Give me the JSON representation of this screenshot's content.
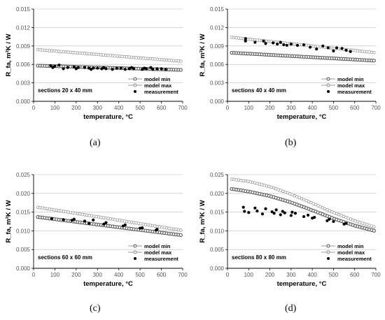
{
  "captions": [
    "(a)",
    "(b)",
    "(c)",
    "(d)"
  ],
  "chart_data": [
    {
      "type": "scatter",
      "title": "",
      "annotation": "sections 20 x 40 mm",
      "xlabel": "temperature, °C",
      "ylabel": "R_fa, m²K / W",
      "xlim": [
        0,
        700
      ],
      "ylim": [
        0,
        0.015
      ],
      "xticks": [
        0,
        100,
        200,
        300,
        400,
        500,
        600,
        700
      ],
      "yticks": [
        0.0,
        0.003,
        0.006,
        0.009,
        0.012,
        0.015
      ],
      "ytick_labels": [
        "0.000",
        "0.003",
        "0.006",
        "0.009",
        "0.012",
        "0.015"
      ],
      "legend_position": "bottom-right",
      "series": [
        {
          "name": "model min",
          "style": "thick-open-circle",
          "x": [
            20,
            700
          ],
          "y": [
            0.0058,
            0.0051
          ]
        },
        {
          "name": "model max",
          "style": "open-circle",
          "x": [
            20,
            700
          ],
          "y": [
            0.0084,
            0.0065
          ]
        },
        {
          "name": "measurement",
          "style": "filled-dot",
          "x": [
            80,
            90,
            100,
            120,
            140,
            160,
            190,
            200,
            210,
            240,
            260,
            270,
            280,
            300,
            320,
            330,
            340,
            370,
            390,
            410,
            430,
            450,
            460,
            470,
            510,
            520,
            530,
            550,
            560,
            580,
            600,
            620
          ],
          "y": [
            0.0058,
            0.0055,
            0.0057,
            0.0059,
            0.0053,
            0.0055,
            0.0056,
            0.0053,
            0.0055,
            0.0055,
            0.0054,
            0.0052,
            0.0054,
            0.0054,
            0.0053,
            0.0055,
            0.0053,
            0.0052,
            0.0054,
            0.0054,
            0.0052,
            0.0053,
            0.0055,
            0.0053,
            0.0052,
            0.0054,
            0.0053,
            0.0055,
            0.0052,
            0.0053,
            0.0053,
            0.0052
          ]
        }
      ]
    },
    {
      "type": "scatter",
      "title": "",
      "annotation": "sections 40 x 40 mm",
      "xlabel": "temperature, °C",
      "ylabel": "R_fa, m²K / W",
      "xlim": [
        0,
        700
      ],
      "ylim": [
        0,
        0.015
      ],
      "xticks": [
        0,
        100,
        200,
        300,
        400,
        500,
        600,
        700
      ],
      "yticks": [
        0.0,
        0.003,
        0.006,
        0.009,
        0.012,
        0.015
      ],
      "ytick_labels": [
        "0.000",
        "0.003",
        "0.006",
        "0.009",
        "0.012",
        "0.015"
      ],
      "legend_position": "bottom-right",
      "series": [
        {
          "name": "model min",
          "style": "thick-open-circle",
          "x": [
            20,
            700
          ],
          "y": [
            0.0079,
            0.0066
          ]
        },
        {
          "name": "model max",
          "style": "open-circle",
          "x": [
            20,
            700
          ],
          "y": [
            0.0104,
            0.0079
          ]
        },
        {
          "name": "measurement",
          "style": "filled-dot",
          "x": [
            85,
            85,
            130,
            170,
            180,
            215,
            235,
            250,
            265,
            280,
            300,
            330,
            360,
            390,
            420,
            450,
            475,
            500,
            515,
            540,
            560,
            580
          ],
          "y": [
            0.0102,
            0.0098,
            0.0096,
            0.0098,
            0.0094,
            0.0095,
            0.0093,
            0.0096,
            0.0092,
            0.0091,
            0.0093,
            0.0091,
            0.0092,
            0.0088,
            0.0085,
            0.009,
            0.0087,
            0.0082,
            0.0087,
            0.0086,
            0.0083,
            0.0081
          ]
        }
      ]
    },
    {
      "type": "scatter",
      "title": "",
      "annotation": "sections 60 x 60 mm",
      "xlabel": "temperature, °C",
      "ylabel": "R_fa, m²K / W",
      "xlim": [
        0,
        700
      ],
      "ylim": [
        0,
        0.025
      ],
      "xticks": [
        0,
        100,
        200,
        300,
        400,
        500,
        600,
        700
      ],
      "yticks": [
        0.0,
        0.005,
        0.01,
        0.015,
        0.02,
        0.025
      ],
      "ytick_labels": [
        "0.000",
        "0.005",
        "0.010",
        "0.015",
        "0.020",
        "0.025"
      ],
      "legend_position": "bottom-right",
      "series": [
        {
          "name": "model min",
          "style": "thick-open-circle",
          "x": [
            20,
            700
          ],
          "y": [
            0.0137,
            0.0088
          ]
        },
        {
          "name": "model max",
          "style": "open-circle",
          "x": [
            20,
            700
          ],
          "y": [
            0.0163,
            0.0101
          ]
        },
        {
          "name": "measurement",
          "style": "filled-dot",
          "x": [
            85,
            140,
            180,
            190,
            240,
            260,
            280,
            330,
            340,
            420,
            430,
            500,
            510,
            575,
            580
          ],
          "y": [
            0.0133,
            0.013,
            0.0128,
            0.0131,
            0.0126,
            0.012,
            0.0129,
            0.0118,
            0.0122,
            0.0113,
            0.0116,
            0.0107,
            0.0108,
            0.0102,
            0.0104
          ]
        }
      ]
    },
    {
      "type": "scatter",
      "title": "",
      "annotation": "sections 80 x 80 mm",
      "xlabel": "temperature, °C",
      "ylabel": "R_fa, m²K / W",
      "xlim": [
        0,
        700
      ],
      "ylim": [
        0,
        0.025
      ],
      "xticks": [
        0,
        100,
        200,
        300,
        400,
        500,
        600,
        700
      ],
      "yticks": [
        0.0,
        0.005,
        0.01,
        0.015,
        0.02,
        0.025
      ],
      "ytick_labels": [
        "0.000",
        "0.005",
        "0.010",
        "0.015",
        "0.020",
        "0.025"
      ],
      "legend_position": "bottom-right",
      "series": [
        {
          "name": "model min",
          "style": "thick-open-circle",
          "x": [
            20,
            100,
            200,
            300,
            400,
            500,
            600,
            700
          ],
          "y": [
            0.0212,
            0.0205,
            0.0193,
            0.0176,
            0.0155,
            0.0133,
            0.0114,
            0.0099
          ]
        },
        {
          "name": "model max",
          "style": "open-circle",
          "x": [
            20,
            100,
            200,
            300,
            400,
            500,
            600,
            700
          ],
          "y": [
            0.0238,
            0.0232,
            0.0218,
            0.0198,
            0.0174,
            0.0149,
            0.0127,
            0.0109
          ]
        },
        {
          "name": "measurement",
          "style": "filled-dot",
          "x": [
            75,
            80,
            100,
            130,
            140,
            165,
            180,
            210,
            220,
            230,
            250,
            260,
            270,
            300,
            305,
            320,
            360,
            380,
            400,
            410,
            470,
            480,
            500,
            550,
            560
          ],
          "y": [
            0.0163,
            0.0152,
            0.0149,
            0.0161,
            0.0153,
            0.0145,
            0.0159,
            0.0151,
            0.0147,
            0.0156,
            0.0143,
            0.0152,
            0.0148,
            0.0141,
            0.015,
            0.0147,
            0.0138,
            0.0142,
            0.0134,
            0.0136,
            0.0127,
            0.0131,
            0.0125,
            0.0118,
            0.012
          ]
        }
      ]
    }
  ]
}
